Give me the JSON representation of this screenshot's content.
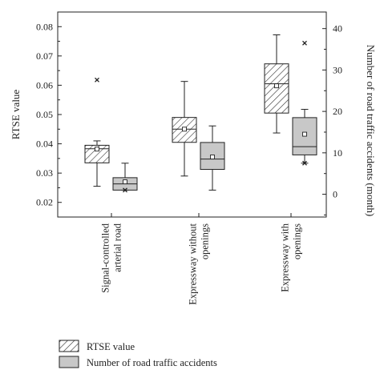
{
  "chart_data": {
    "type": "box",
    "categories": [
      [
        "Signal-controlled",
        "arterial road"
      ],
      [
        "Expressway without",
        "openings"
      ],
      [
        "Expressway with",
        "openings"
      ]
    ],
    "left_axis": {
      "label": "RTSE value",
      "ylim": [
        0.015,
        0.085
      ],
      "ticks": [
        0.02,
        0.03,
        0.04,
        0.05,
        0.06,
        0.07,
        0.08
      ],
      "tick_labels": [
        "0.02",
        "0.03",
        "0.04",
        "0.05",
        "0.06",
        "0.07",
        "0.08"
      ]
    },
    "right_axis": {
      "label": "Number of road traffic accidents (month)",
      "ylim": [
        -5.5,
        44
      ],
      "ticks": [
        0,
        10,
        20,
        30,
        40
      ],
      "tick_labels": [
        "0",
        "10",
        "20",
        "30",
        "40"
      ]
    },
    "series": [
      {
        "name": "RTSE value",
        "axis": "left",
        "fill": "hatched",
        "boxes": [
          {
            "whisker_low": 0.0255,
            "q1": 0.0335,
            "median": 0.0383,
            "q3": 0.0395,
            "whisker_high": 0.041,
            "mean": 0.0382,
            "outliers": [
              0.0618
            ]
          },
          {
            "whisker_low": 0.029,
            "q1": 0.0405,
            "median": 0.045,
            "q3": 0.049,
            "whisker_high": 0.0613,
            "mean": 0.045,
            "outliers": []
          },
          {
            "whisker_low": 0.0437,
            "q1": 0.0505,
            "median": 0.0605,
            "q3": 0.0673,
            "whisker_high": 0.0772,
            "mean": 0.0598,
            "outliers": []
          }
        ]
      },
      {
        "name": "Number of road traffic accidents",
        "axis": "right",
        "fill": "#c8c8c8",
        "boxes": [
          {
            "whisker_low": 1.0,
            "q1": 1.0,
            "median": 2.5,
            "q3": 4.0,
            "whisker_high": 7.5,
            "mean": 3.0,
            "outliers": [
              1.0
            ]
          },
          {
            "whisker_low": 1.0,
            "q1": 6.0,
            "median": 8.5,
            "q3": 12.5,
            "whisker_high": 16.5,
            "mean": 9.0,
            "outliers": []
          },
          {
            "whisker_low": 7.5,
            "q1": 9.5,
            "median": 11.5,
            "q3": 18.5,
            "whisker_high": 20.5,
            "mean": 14.5,
            "outliers": [
              36.5,
              7.5
            ]
          }
        ]
      }
    ],
    "legend": {
      "placement": "bottom-left",
      "entries": [
        "RTSE value",
        "Number of road traffic accidents"
      ]
    },
    "grid": false
  }
}
